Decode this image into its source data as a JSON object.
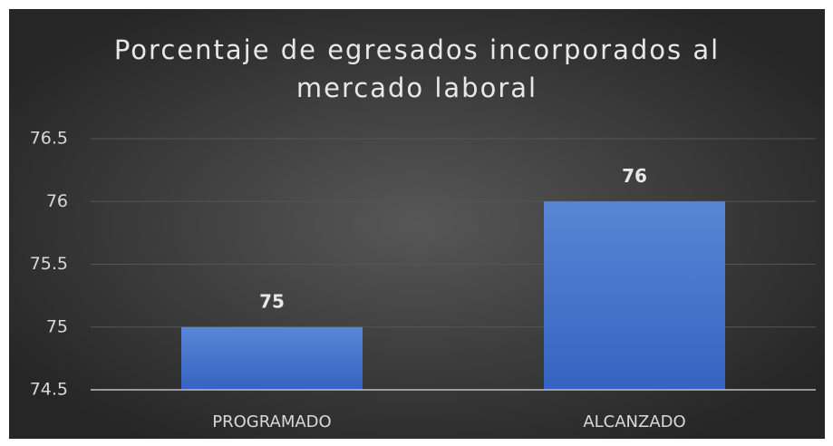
{
  "chart_data": {
    "type": "bar",
    "title": "Porcentaje de egresados incorporados al mercado laboral",
    "categories": [
      "PROGRAMADO",
      "ALCANZADO"
    ],
    "values": [
      75,
      76
    ],
    "color": "#4472c4",
    "ylim": [
      74.5,
      76.5
    ],
    "yticks": [
      74.5,
      75,
      75.5,
      76,
      76.5
    ],
    "grid": true
  }
}
